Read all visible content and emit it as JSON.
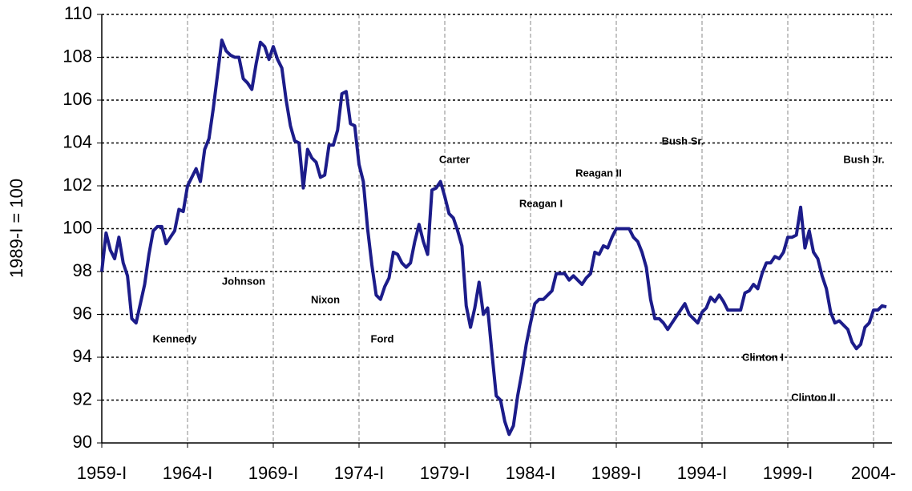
{
  "chart_data": {
    "type": "line",
    "y_label": "1989-I = 100",
    "categories": [
      "1959-I",
      null,
      null,
      null,
      null,
      null,
      null,
      null,
      null,
      null,
      null,
      null,
      null,
      null,
      null,
      null,
      null,
      null,
      null,
      null,
      "1964-I",
      null,
      null,
      null,
      null,
      null,
      null,
      null,
      null,
      null,
      null,
      null,
      null,
      null,
      null,
      null,
      null,
      null,
      null,
      null,
      "1969-I",
      null,
      null,
      null,
      null,
      null,
      null,
      null,
      null,
      null,
      null,
      null,
      null,
      null,
      null,
      null,
      null,
      null,
      null,
      null,
      "1974-I",
      null,
      null,
      null,
      null,
      null,
      null,
      null,
      null,
      null,
      null,
      null,
      null,
      null,
      null,
      null,
      null,
      null,
      null,
      null,
      "1979-I",
      null,
      null,
      null,
      null,
      null,
      null,
      null,
      null,
      null,
      null,
      null,
      null,
      null,
      null,
      null,
      null,
      null,
      null,
      null,
      "1984-I",
      null,
      null,
      null,
      null,
      null,
      null,
      null,
      null,
      null,
      null,
      null,
      null,
      null,
      null,
      null,
      null,
      null,
      null,
      null,
      "1989-I",
      null,
      null,
      null,
      null,
      null,
      null,
      null,
      null,
      null,
      null,
      null,
      null,
      null,
      null,
      null,
      null,
      null,
      null,
      null,
      "1994-I",
      null,
      null,
      null,
      null,
      null,
      null,
      null,
      null,
      null,
      null,
      null,
      null,
      null,
      null,
      null,
      null,
      null,
      null,
      null,
      "1999-I",
      null,
      null,
      null,
      null,
      null,
      null,
      null,
      null,
      null,
      null,
      null,
      null,
      null,
      null,
      null,
      null,
      null,
      null,
      null,
      "2004-",
      null,
      null,
      null
    ],
    "series": [
      {
        "color": "#1c1c8a",
        "values": [
          98.0,
          99.8,
          99.0,
          98.6,
          99.6,
          98.4,
          97.8,
          95.8,
          95.6,
          96.5,
          97.4,
          98.8,
          99.9,
          100.1,
          100.1,
          99.3,
          99.6,
          99.9,
          100.9,
          100.8,
          102.0,
          102.4,
          102.8,
          102.2,
          103.7,
          104.2,
          105.6,
          107.2,
          108.8,
          108.3,
          108.1,
          108.0,
          108.0,
          107.0,
          106.8,
          106.5,
          107.7,
          108.7,
          108.5,
          107.9,
          108.5,
          107.9,
          107.5,
          106.0,
          104.8,
          104.1,
          104.0,
          101.9,
          103.7,
          103.3,
          103.1,
          102.4,
          102.5,
          103.9,
          103.9,
          104.6,
          106.3,
          106.4,
          104.9,
          104.8,
          103.0,
          102.2,
          100.0,
          98.3,
          96.9,
          96.7,
          97.3,
          97.7,
          98.9,
          98.8,
          98.4,
          98.2,
          98.4,
          99.4,
          100.2,
          99.4,
          98.8,
          101.8,
          101.9,
          102.2,
          101.5,
          100.7,
          100.5,
          99.9,
          99.2,
          96.4,
          95.4,
          96.3,
          97.5,
          96.0,
          96.3,
          94.2,
          92.2,
          92.0,
          91.0,
          90.4,
          90.8,
          92.2,
          93.3,
          94.6,
          95.6,
          96.5,
          96.7,
          96.7,
          96.9,
          97.1,
          97.9,
          97.9,
          97.9,
          97.6,
          97.8,
          97.6,
          97.4,
          97.7,
          97.9,
          98.9,
          98.8,
          99.2,
          99.1,
          99.6,
          100.0,
          100.0,
          100.0,
          100.0,
          99.6,
          99.4,
          98.9,
          98.2,
          96.7,
          95.8,
          95.8,
          95.6,
          95.3,
          95.6,
          95.9,
          96.2,
          96.5,
          96.0,
          95.8,
          95.6,
          96.1,
          96.3,
          96.8,
          96.6,
          96.9,
          96.6,
          96.2,
          96.2,
          96.2,
          96.2,
          97.0,
          97.1,
          97.4,
          97.2,
          97.9,
          98.4,
          98.4,
          98.7,
          98.6,
          98.9,
          99.6,
          99.6,
          99.7,
          101.0,
          99.1,
          99.9,
          98.9,
          98.6,
          97.8,
          97.2,
          96.1,
          95.6,
          95.7,
          95.5,
          95.3,
          94.7,
          94.4,
          94.6,
          95.4,
          95.6,
          96.2,
          96.2,
          96.4,
          96.35
        ]
      }
    ],
    "ylim": [
      90,
      110
    ],
    "yticks": [
      90,
      92,
      94,
      96,
      98,
      100,
      102,
      104,
      106,
      108,
      110
    ],
    "grid": true,
    "annotations": [
      "Kennedy",
      "Johnson",
      "Nixon",
      "Ford",
      "Carter",
      "Reagan I",
      "Reagan II",
      "Bush Sr.",
      "Clinton I",
      "Clinton II",
      "Bush Jr."
    ]
  }
}
